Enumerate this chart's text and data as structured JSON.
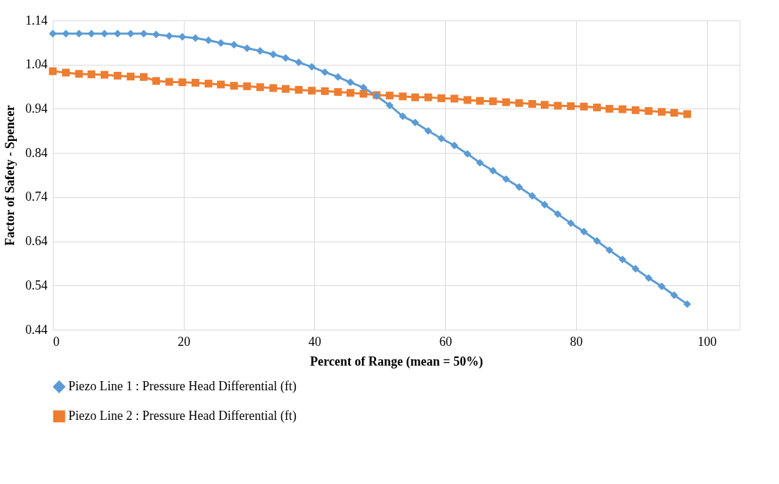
{
  "chart_data": {
    "type": "line",
    "xlabel": "Percent of Range (mean = 50%)",
    "ylabel": "Factor of Safety - Spencer",
    "x": [
      0,
      2.0,
      4.0,
      5.9,
      7.9,
      9.9,
      11.9,
      13.9,
      15.8,
      17.8,
      19.8,
      21.8,
      23.8,
      25.7,
      27.7,
      29.7,
      31.7,
      33.7,
      35.6,
      37.6,
      39.6,
      41.6,
      43.6,
      45.5,
      47.5,
      49.5,
      51.5,
      53.5,
      55.4,
      57.4,
      59.4,
      61.4,
      63.4,
      65.3,
      67.3,
      69.3,
      71.3,
      73.3,
      75.2,
      77.2,
      79.2,
      81.2,
      83.2,
      85.1,
      87.1,
      89.1,
      91.1,
      93.1,
      95.0,
      97.0
    ],
    "series": [
      {
        "name": "Piezo Line 1 : Pressure Head Differential (ft)",
        "color": "#5b9bd5",
        "marker": "diamond",
        "values": [
          1.11,
          1.11,
          1.11,
          1.11,
          1.11,
          1.11,
          1.11,
          1.11,
          1.108,
          1.105,
          1.103,
          1.1,
          1.095,
          1.089,
          1.085,
          1.077,
          1.071,
          1.063,
          1.055,
          1.045,
          1.035,
          1.023,
          1.012,
          1.0,
          0.988,
          0.969,
          0.948,
          0.923,
          0.909,
          0.89,
          0.873,
          0.857,
          0.838,
          0.818,
          0.8,
          0.781,
          0.763,
          0.743,
          0.723,
          0.702,
          0.681,
          0.662,
          0.641,
          0.62,
          0.599,
          0.578,
          0.557,
          0.538,
          0.518,
          0.498
        ]
      },
      {
        "name": "Piezo Line 2 : Pressure Head Differential (ft)",
        "color": "#ed7d31",
        "marker": "square",
        "values": [
          1.025,
          1.022,
          1.019,
          1.018,
          1.017,
          1.015,
          1.013,
          1.012,
          1.003,
          1.001,
          1.0,
          0.999,
          0.997,
          0.995,
          0.992,
          0.991,
          0.989,
          0.987,
          0.985,
          0.983,
          0.981,
          0.98,
          0.978,
          0.976,
          0.974,
          0.971,
          0.97,
          0.968,
          0.966,
          0.966,
          0.964,
          0.963,
          0.96,
          0.958,
          0.957,
          0.955,
          0.953,
          0.951,
          0.949,
          0.947,
          0.946,
          0.945,
          0.943,
          0.94,
          0.939,
          0.937,
          0.935,
          0.933,
          0.931,
          0.928
        ]
      }
    ],
    "xlim": [
      0,
      105
    ],
    "xticks": [
      0,
      20,
      40,
      60,
      80,
      100
    ],
    "ylim": [
      0.44,
      1.14
    ],
    "yticks": [
      0.44,
      0.54,
      0.64,
      0.74,
      0.84,
      0.94,
      1.04,
      1.14
    ],
    "grid": true,
    "legend": "bottom",
    "line_style": "solid"
  }
}
